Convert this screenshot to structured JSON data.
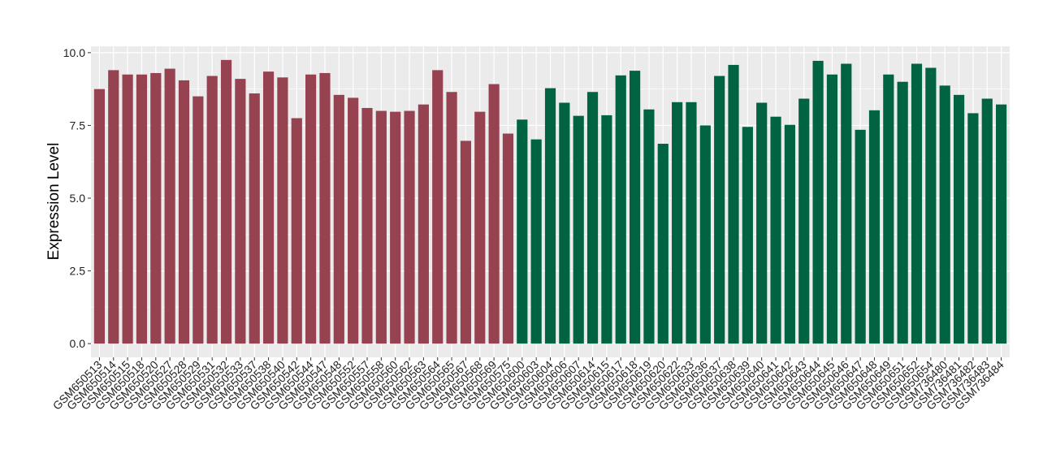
{
  "chart_data": {
    "type": "bar",
    "y_label": "Expression Level",
    "categories": [
      "GSM650513",
      "GSM650514",
      "GSM650515",
      "GSM650518",
      "GSM650520",
      "GSM650527",
      "GSM650528",
      "GSM650529",
      "GSM650531",
      "GSM650532",
      "GSM650533",
      "GSM650537",
      "GSM650538",
      "GSM650540",
      "GSM650542",
      "GSM650544",
      "GSM650547",
      "GSM650548",
      "GSM650552",
      "GSM650557",
      "GSM650558",
      "GSM650560",
      "GSM650562",
      "GSM650563",
      "GSM650564",
      "GSM650565",
      "GSM650567",
      "GSM650568",
      "GSM650569",
      "GSM650575",
      "GSM650600",
      "GSM650603",
      "GSM650604",
      "GSM650606",
      "GSM650607",
      "GSM650614",
      "GSM650615",
      "GSM650617",
      "GSM650618",
      "GSM650619",
      "GSM650620",
      "GSM650622",
      "GSM650633",
      "GSM650636",
      "GSM650637",
      "GSM650638",
      "GSM650639",
      "GSM650640",
      "GSM650641",
      "GSM650642",
      "GSM650643",
      "GSM650644",
      "GSM650645",
      "GSM650646",
      "GSM650647",
      "GSM650648",
      "GSM650649",
      "GSM650651",
      "GSM650652",
      "GSM650654",
      "GSM736480",
      "GSM736481",
      "GSM736482",
      "GSM736483",
      "GSM736484"
    ],
    "values": [
      8.75,
      9.4,
      9.25,
      9.25,
      9.3,
      9.45,
      9.05,
      8.5,
      9.2,
      9.75,
      9.1,
      8.6,
      9.35,
      9.15,
      7.75,
      9.25,
      9.3,
      8.55,
      8.45,
      8.1,
      8.0,
      7.97,
      8.0,
      8.22,
      9.4,
      8.65,
      6.97,
      7.97,
      8.92,
      7.22,
      7.7,
      7.02,
      8.78,
      8.28,
      7.83,
      8.65,
      7.85,
      9.22,
      9.38,
      8.05,
      6.87,
      8.3,
      8.3,
      7.5,
      9.2,
      9.58,
      7.45,
      8.28,
      7.8,
      7.52,
      8.42,
      9.72,
      9.25,
      9.62,
      7.35,
      8.02,
      9.25,
      9.0,
      9.62,
      9.48,
      8.87,
      8.55,
      7.92,
      8.42,
      8.22
    ],
    "colors": [
      "#964250",
      "#964250",
      "#964250",
      "#964250",
      "#964250",
      "#964250",
      "#964250",
      "#964250",
      "#964250",
      "#964250",
      "#964250",
      "#964250",
      "#964250",
      "#964250",
      "#964250",
      "#964250",
      "#964250",
      "#964250",
      "#964250",
      "#964250",
      "#964250",
      "#964250",
      "#964250",
      "#964250",
      "#964250",
      "#964250",
      "#964250",
      "#964250",
      "#964250",
      "#964250",
      "#006442",
      "#006442",
      "#006442",
      "#006442",
      "#006442",
      "#006442",
      "#006442",
      "#006442",
      "#006442",
      "#006442",
      "#006442",
      "#006442",
      "#006442",
      "#006442",
      "#006442",
      "#006442",
      "#006442",
      "#006442",
      "#006442",
      "#006442",
      "#006442",
      "#006442",
      "#006442",
      "#006442",
      "#006442",
      "#006442",
      "#006442",
      "#006442",
      "#006442",
      "#006442",
      "#006442",
      "#006442",
      "#006442",
      "#006442",
      "#006442"
    ],
    "ylim": [
      -0.47,
      10.22
    ],
    "yticks": [
      {
        "value": 0,
        "label": "0.0"
      },
      {
        "value": 2.5,
        "label": "2.5"
      },
      {
        "value": 5,
        "label": "5.0"
      },
      {
        "value": 7.5,
        "label": "7.5"
      },
      {
        "value": 10,
        "label": "10.0"
      }
    ],
    "grid": true
  }
}
